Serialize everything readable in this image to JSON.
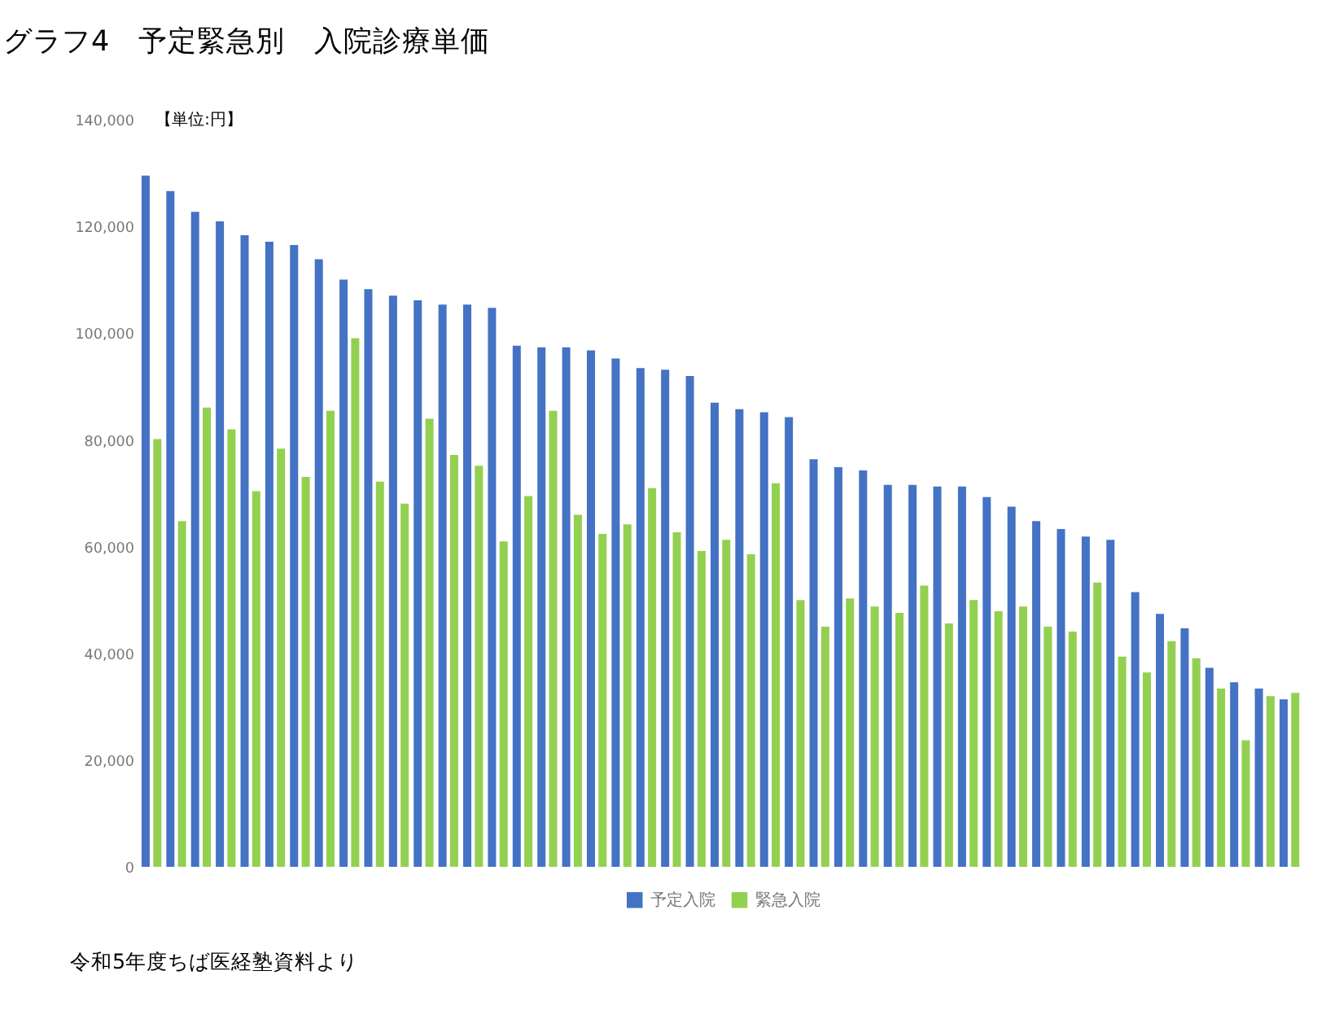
{
  "chart_data": {
    "type": "bar",
    "title": "グラフ4　予定緊急別　入院診療単価",
    "annotations": [
      "【単位:円】",
      "令和5年度ちば医経塾資料より"
    ],
    "categories": [
      null,
      null,
      null,
      null,
      null,
      null,
      null,
      null,
      null,
      null,
      null,
      null,
      null,
      null,
      null,
      null,
      null,
      null,
      null,
      null,
      null,
      null,
      null,
      null,
      null,
      null,
      null,
      null,
      null,
      null,
      null,
      null,
      null,
      null,
      null,
      null,
      null,
      null,
      null,
      null,
      null,
      null,
      null,
      null,
      null,
      null,
      null
    ],
    "series": [
      {
        "name": "予定入院",
        "color": "#4472c4",
        "values": [
          129600,
          126700,
          122800,
          121000,
          118400,
          117200,
          116600,
          113900,
          110100,
          108300,
          107100,
          106200,
          105400,
          105400,
          104800,
          97700,
          97400,
          97400,
          96800,
          95300,
          93500,
          93200,
          92000,
          87000,
          85800,
          85200,
          84300,
          76400,
          74900,
          74300,
          71600,
          71600,
          71300,
          71300,
          69300,
          67500,
          64800,
          63300,
          61900,
          61300,
          51500,
          47400,
          44700,
          37300,
          34600,
          33400,
          31400
        ]
      },
      {
        "name": "緊急入院",
        "color": "#92d050",
        "values": [
          80200,
          64800,
          86100,
          82000,
          70400,
          78400,
          73100,
          85500,
          99100,
          72200,
          68100,
          84000,
          77200,
          75200,
          61000,
          69500,
          85500,
          66000,
          62400,
          64200,
          71000,
          62700,
          59200,
          61300,
          58600,
          71900,
          50000,
          45000,
          50300,
          48800,
          47600,
          52700,
          45600,
          50000,
          47900,
          48800,
          45000,
          44100,
          53300,
          39400,
          36400,
          42300,
          39100,
          33400,
          23700,
          32000,
          32600
        ]
      }
    ],
    "ylim": [
      0,
      140000
    ],
    "yticks": [
      0,
      {
        "value": 20000,
        "label": "20,000"
      },
      {
        "value": 40000,
        "label": "40,000"
      },
      {
        "value": 60000,
        "label": "60,000"
      },
      {
        "value": 80000,
        "label": "80,000"
      },
      {
        "value": 100000,
        "label": "100,000"
      },
      {
        "value": 120000,
        "label": "120,000"
      },
      {
        "value": 140000,
        "label": "140,000"
      }
    ],
    "grid": false,
    "legend": "bottom",
    "tick_labels": "y"
  }
}
